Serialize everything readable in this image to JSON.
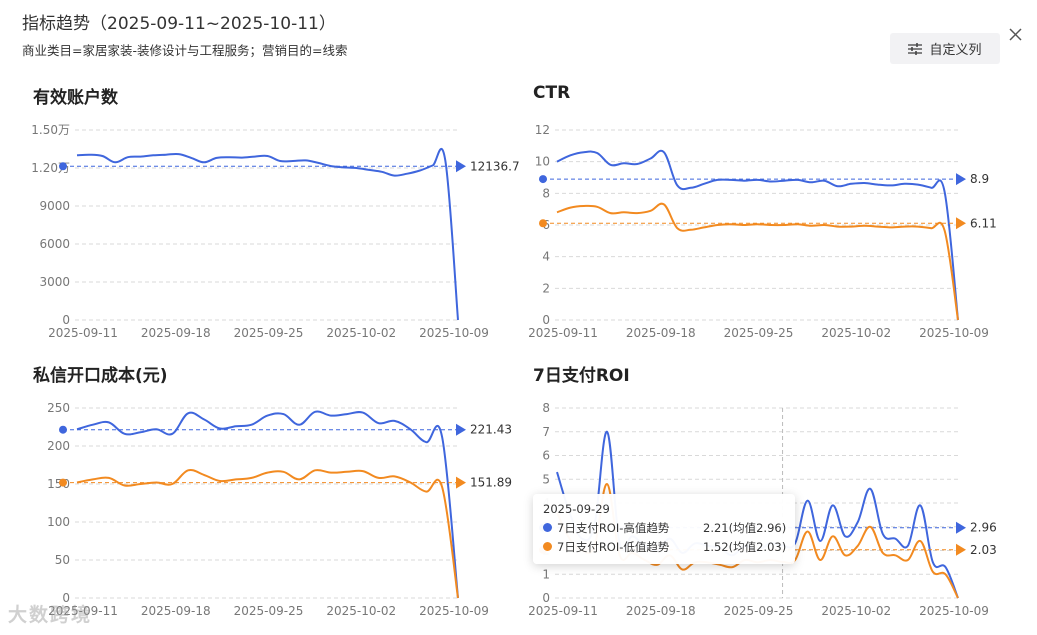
{
  "header": {
    "title": "指标趋势（2025-09-11~2025-10-11）",
    "subtitle": "商业类目=家居家装-装修设计与工程服务；营销目的=线索",
    "custom_columns_label": "自定义列"
  },
  "colors": {
    "blue": "#3f66dd",
    "orange": "#f28a20",
    "grid": "#d9d9d9",
    "axis_text": "#777"
  },
  "watermark": "大数跨境",
  "chart_data": [
    {
      "id": "accounts",
      "type": "line",
      "title": "有效账户数",
      "ylim": [
        0,
        15000
      ],
      "yticks": [
        {
          "v": 0,
          "label": "0"
        },
        {
          "v": 3000,
          "label": "3000"
        },
        {
          "v": 6000,
          "label": "6000"
        },
        {
          "v": 9000,
          "label": "9000"
        },
        {
          "v": 12000,
          "label": "1.20万"
        },
        {
          "v": 15000,
          "label": "1.50万"
        }
      ],
      "xticks": [
        "2025-09-11",
        "2025-09-18",
        "2025-09-25",
        "2025-10-02",
        "2025-10-09"
      ],
      "series": [
        {
          "color": "blue",
          "avg": 12136.7,
          "avg_label": "12136.7",
          "values": [
            13000,
            13050,
            12950,
            12450,
            12850,
            12900,
            13000,
            13050,
            13100,
            12800,
            12450,
            12800,
            12850,
            12820,
            12900,
            12950,
            12550,
            12550,
            12600,
            12400,
            12150,
            12050,
            12000,
            11850,
            11700,
            11400,
            11550,
            11800,
            12200,
            12600,
            0
          ]
        }
      ]
    },
    {
      "id": "ctr",
      "type": "line",
      "title": "CTR",
      "ylim": [
        0,
        12
      ],
      "yticks": [
        {
          "v": 0,
          "label": "0"
        },
        {
          "v": 2,
          "label": "2"
        },
        {
          "v": 4,
          "label": "4"
        },
        {
          "v": 6,
          "label": "6"
        },
        {
          "v": 8,
          "label": "8"
        },
        {
          "v": 10,
          "label": "10"
        },
        {
          "v": 12,
          "label": "12"
        }
      ],
      "xticks": [
        "2025-09-11",
        "2025-09-18",
        "2025-09-25",
        "2025-10-02",
        "2025-10-09"
      ],
      "series": [
        {
          "color": "blue",
          "avg": 8.9,
          "avg_label": "8.9",
          "values": [
            10.0,
            10.4,
            10.6,
            10.55,
            9.8,
            9.9,
            9.85,
            10.2,
            10.6,
            8.5,
            8.35,
            8.6,
            8.85,
            8.85,
            8.8,
            8.85,
            8.75,
            8.8,
            8.85,
            8.7,
            8.8,
            8.45,
            8.6,
            8.65,
            8.55,
            8.5,
            8.6,
            8.55,
            8.35,
            8.1,
            0
          ]
        },
        {
          "color": "orange",
          "avg": 6.11,
          "avg_label": "6.11",
          "values": [
            6.8,
            7.1,
            7.2,
            7.15,
            6.75,
            6.8,
            6.75,
            6.9,
            7.3,
            5.8,
            5.7,
            5.85,
            6.0,
            6.05,
            6.0,
            6.05,
            6.0,
            6.0,
            6.05,
            5.95,
            6.0,
            5.9,
            5.9,
            5.95,
            5.9,
            5.85,
            5.9,
            5.9,
            5.8,
            5.65,
            0
          ]
        }
      ]
    },
    {
      "id": "dm_cost",
      "type": "line",
      "title": "私信开口成本(元)",
      "ylim": [
        0,
        250
      ],
      "yticks": [
        {
          "v": 0,
          "label": "0"
        },
        {
          "v": 50,
          "label": "50"
        },
        {
          "v": 100,
          "label": "100"
        },
        {
          "v": 150,
          "label": "150"
        },
        {
          "v": 200,
          "label": "200"
        },
        {
          "v": 250,
          "label": "250"
        }
      ],
      "xticks": [
        "2025-09-11",
        "2025-09-18",
        "2025-09-25",
        "2025-10-02",
        "2025-10-09"
      ],
      "series": [
        {
          "color": "blue",
          "avg": 221.43,
          "avg_label": "221.43",
          "values": [
            222,
            228,
            231,
            216,
            218,
            222,
            216,
            243,
            235,
            223,
            226,
            228,
            240,
            242,
            228,
            245,
            240,
            242,
            244,
            230,
            233,
            222,
            205,
            212,
            0
          ]
        },
        {
          "color": "orange",
          "avg": 151.89,
          "avg_label": "151.89",
          "values": [
            152,
            156,
            158,
            148,
            150,
            152,
            150,
            168,
            162,
            154,
            156,
            158,
            165,
            166,
            156,
            168,
            165,
            166,
            167,
            158,
            160,
            152,
            140,
            146,
            0
          ]
        }
      ]
    },
    {
      "id": "roi7",
      "type": "line",
      "title": "7日支付ROI",
      "ylim": [
        0,
        8
      ],
      "yticks": [
        {
          "v": 0,
          "label": "0"
        },
        {
          "v": 1,
          "label": "1"
        },
        {
          "v": 2,
          "label": "2"
        },
        {
          "v": 3,
          "label": "3"
        },
        {
          "v": 4,
          "label": "4"
        },
        {
          "v": 5,
          "label": "5"
        },
        {
          "v": 6,
          "label": "6"
        },
        {
          "v": 7,
          "label": "7"
        },
        {
          "v": 8,
          "label": "8"
        }
      ],
      "xticks": [
        "2025-09-11",
        "2025-09-18",
        "2025-09-25",
        "2025-10-02",
        "2025-10-09"
      ],
      "hover_index": 18,
      "series": [
        {
          "color": "blue",
          "avg": 2.96,
          "avg_label": "2.96",
          "values": [
            5.3,
            3.6,
            2.5,
            3.1,
            7.0,
            2.3,
            2.6,
            2.2,
            2.0,
            2.5,
            1.9,
            2.3,
            2.2,
            2.1,
            1.8,
            2.2,
            2.0,
            2.3,
            2.21,
            2.3,
            4.1,
            2.4,
            3.9,
            2.6,
            3.2,
            4.6,
            2.7,
            2.5,
            2.2,
            3.9,
            1.5,
            1.3,
            0
          ]
        },
        {
          "color": "orange",
          "avg": 2.03,
          "avg_label": "2.03",
          "values": [
            3.6,
            2.5,
            2.0,
            2.2,
            4.8,
            1.8,
            1.9,
            1.6,
            1.4,
            1.8,
            1.2,
            1.5,
            1.5,
            1.4,
            1.3,
            1.6,
            1.5,
            1.6,
            1.52,
            1.6,
            2.8,
            1.6,
            2.6,
            1.8,
            2.2,
            3.0,
            1.9,
            1.8,
            1.6,
            2.4,
            1.1,
            1.0,
            0
          ]
        }
      ],
      "tooltip": {
        "date": "2025-09-29",
        "rows": [
          {
            "color": "blue",
            "name": "7日支付ROI-高值趋势",
            "value": "2.21(均值2.96)"
          },
          {
            "color": "orange",
            "name": "7日支付ROI-低值趋势",
            "value": "1.52(均值2.03)"
          }
        ]
      }
    }
  ]
}
